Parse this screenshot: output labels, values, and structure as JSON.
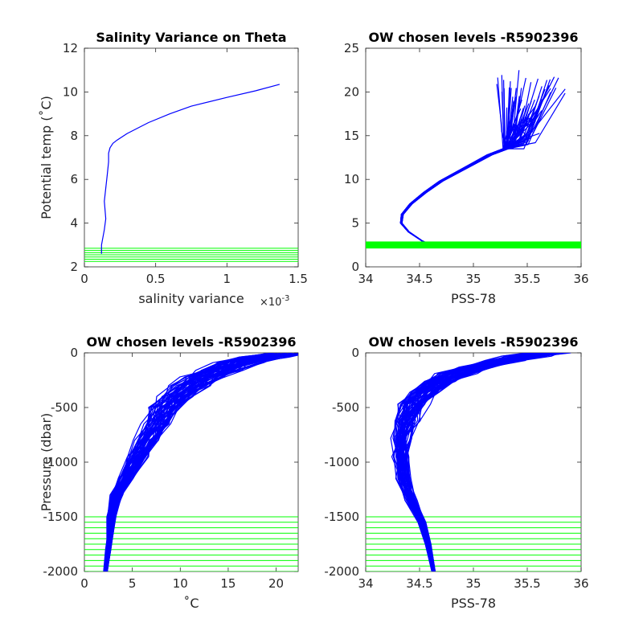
{
  "colors": {
    "profile": "#0000ff",
    "level": "#00ff00",
    "axis": "#262626"
  },
  "chart_data": [
    {
      "id": "sal-var",
      "type": "line",
      "title": "Salinity Variance on Theta",
      "xlabel": "salinity variance",
      "x_exponent": "×10",
      "x_exponent_power": "-3",
      "ylabel": "Potential temp (˚C)",
      "xlim": [
        0,
        1.5
      ],
      "ylim": [
        2,
        12
      ],
      "xticks": [
        0,
        0.5,
        1,
        1.5
      ],
      "xtick_labels": [
        "0",
        "0.5",
        "1",
        "1.5"
      ],
      "yticks": [
        2,
        4,
        6,
        8,
        10,
        12
      ],
      "ytick_labels": [
        "2",
        "4",
        "6",
        "8",
        "10",
        "12"
      ],
      "series": [
        {
          "color": "#0000ff",
          "x": [
            0.12,
            0.12,
            0.14,
            0.15,
            0.14,
            0.15,
            0.16,
            0.17,
            0.17,
            0.18,
            0.2,
            0.23,
            0.3,
            0.45,
            0.6,
            0.75,
            1.0,
            1.2,
            1.37
          ],
          "y": [
            2.6,
            3.0,
            3.7,
            4.2,
            5.0,
            5.6,
            6.2,
            6.8,
            7.2,
            7.45,
            7.65,
            7.8,
            8.1,
            8.6,
            9.0,
            9.35,
            9.75,
            10.05,
            10.35
          ]
        }
      ],
      "level_lines": [
        2.25,
        2.35,
        2.45,
        2.55,
        2.65,
        2.75,
        2.85
      ]
    },
    {
      "id": "theta-sal",
      "type": "line",
      "title": "OW chosen levels -R5902396",
      "xlabel": "PSS-78",
      "ylabel": "",
      "xlim": [
        34,
        36
      ],
      "ylim": [
        0,
        25
      ],
      "xticks": [
        34,
        34.5,
        35,
        35.5,
        36
      ],
      "xtick_labels": [
        "34",
        "34.5",
        "35",
        "35.5",
        "36"
      ],
      "yticks": [
        0,
        5,
        10,
        15,
        20,
        25
      ],
      "ytick_labels": [
        "0",
        "5",
        "10",
        "15",
        "20",
        "25"
      ],
      "base_profile": {
        "x": [
          34.65,
          34.52,
          34.4,
          34.33,
          34.34,
          34.42,
          34.55,
          34.7,
          34.85,
          35.0,
          35.15,
          35.3
        ],
        "y": [
          2.2,
          3.0,
          4.0,
          5.0,
          6.0,
          7.2,
          8.5,
          9.8,
          10.8,
          11.8,
          12.8,
          13.5
        ]
      },
      "upper_tips": {
        "x": [
          35.25,
          35.35,
          35.42,
          35.48,
          35.55,
          35.6,
          35.65,
          35.7,
          35.73,
          35.62,
          35.5,
          35.38
        ],
        "y": [
          21.0,
          21.5,
          20.0,
          19.0,
          18.0,
          20.5,
          19.5,
          21.0,
          20.0,
          17.5,
          16.5,
          18.5
        ]
      },
      "profile_count": 60,
      "level_band": [
        2.1,
        2.9
      ]
    },
    {
      "id": "temp-pres",
      "type": "line",
      "title": "OW chosen levels -R5902396",
      "xlabel": "˚C",
      "ylabel": "Pressure (dbar)",
      "xlim": [
        0,
        22.3
      ],
      "ylim": [
        -2000,
        0
      ],
      "xticks": [
        0,
        5,
        10,
        15,
        20
      ],
      "xtick_labels": [
        "0",
        "5",
        "10",
        "15",
        "20"
      ],
      "yticks": [
        -2000,
        -1500,
        -1000,
        -500,
        0
      ],
      "ytick_labels": [
        "-2000",
        "-1500",
        "-1000",
        "-500",
        "0"
      ],
      "base_profile": {
        "x": [
          2.2,
          2.5,
          2.8,
          3.3,
          4.2,
          5.5,
          6.5,
          7.5,
          8.5,
          9.5,
          11.0,
          12.5,
          14.0,
          16.0,
          18.5,
          21.0
        ],
        "y": [
          -2000,
          -1800,
          -1500,
          -1300,
          -1150,
          -950,
          -800,
          -650,
          -500,
          -400,
          -300,
          -220,
          -160,
          -90,
          -40,
          -5
        ]
      },
      "profile_count": 60,
      "level_lines": [
        -1500,
        -1550,
        -1600,
        -1650,
        -1700,
        -1750,
        -1800,
        -1850,
        -1900,
        -1950,
        -2000
      ]
    },
    {
      "id": "sal-pres",
      "type": "line",
      "title": "OW chosen levels -R5902396",
      "xlabel": "PSS-78",
      "ylabel": "",
      "xlim": [
        34,
        36
      ],
      "ylim": [
        -2000,
        0
      ],
      "xticks": [
        34,
        34.5,
        35,
        35.5,
        36
      ],
      "xtick_labels": [
        "34",
        "34.5",
        "35",
        "35.5",
        "36"
      ],
      "yticks": [
        -2000,
        -1500,
        -1000,
        -500,
        0
      ],
      "ytick_labels": [
        "-2000",
        "-1500",
        "-1000",
        "-500",
        "0"
      ],
      "base_profile": {
        "x": [
          34.63,
          34.58,
          34.52,
          34.42,
          34.35,
          34.33,
          34.34,
          34.38,
          34.45,
          34.55,
          34.7,
          34.85,
          35.05,
          35.3,
          35.5,
          35.7
        ],
        "y": [
          -2000,
          -1750,
          -1550,
          -1350,
          -1150,
          -950,
          -780,
          -620,
          -470,
          -360,
          -260,
          -190,
          -130,
          -70,
          -30,
          0
        ]
      },
      "profile_count": 60,
      "level_lines": [
        -1500,
        -1550,
        -1600,
        -1650,
        -1700,
        -1750,
        -1800,
        -1850,
        -1900,
        -1950,
        -2000
      ]
    }
  ]
}
